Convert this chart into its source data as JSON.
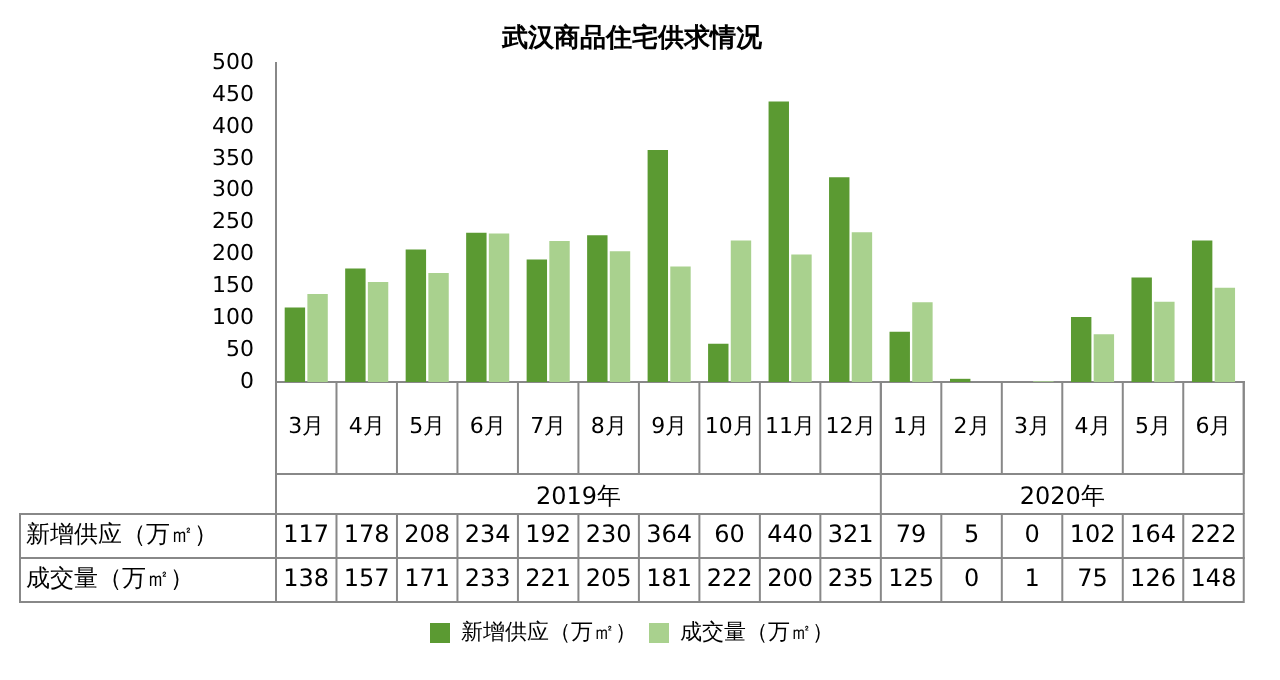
{
  "chart_data": {
    "type": "bar",
    "title": "武汉商品住宅供求情况",
    "categories": [
      "3月",
      "4月",
      "5月",
      "6月",
      "7月",
      "8月",
      "9月",
      "10月",
      "11月",
      "12月",
      "1月",
      "2月",
      "3月",
      "4月",
      "5月",
      "6月"
    ],
    "series": [
      {
        "name": "新增供应（万㎡）",
        "color": "#5b9a32",
        "values": [
          117,
          178,
          208,
          234,
          192,
          230,
          364,
          60,
          440,
          321,
          79,
          5,
          0,
          102,
          164,
          222
        ]
      },
      {
        "name": "成交量（万㎡）",
        "color": "#a9d18e",
        "values": [
          138,
          157,
          171,
          233,
          221,
          205,
          181,
          222,
          200,
          235,
          125,
          0,
          1,
          75,
          126,
          148
        ]
      }
    ],
    "ylim": [
      0,
      500
    ],
    "yticks": [
      0,
      50,
      100,
      150,
      200,
      250,
      300,
      350,
      400,
      450,
      500
    ],
    "grid": false,
    "legend": "bottom",
    "data_labels": true,
    "annotations": [
      "2019年",
      "2020年"
    ]
  }
}
